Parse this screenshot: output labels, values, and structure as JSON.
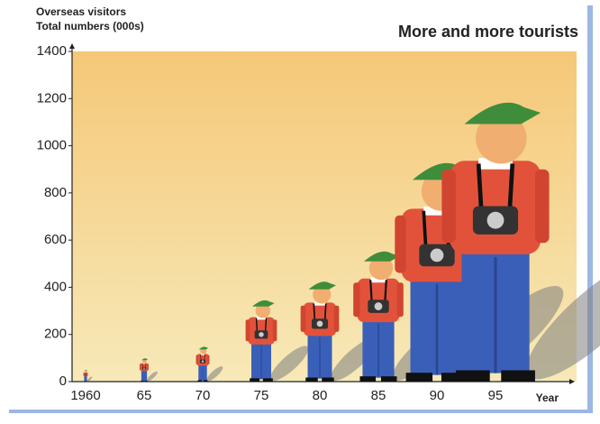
{
  "chart_data": {
    "type": "pictogram",
    "title": "More and more tourists",
    "y_label": [
      "Overseas visitors",
      "Total numbers (000s)"
    ],
    "x_label": "Year",
    "categories": [
      "1960",
      "65",
      "70",
      "75",
      "80",
      "85",
      "90",
      "95"
    ],
    "values": [
      50,
      100,
      150,
      350,
      430,
      560,
      940,
      1200
    ],
    "ylim": [
      0,
      1400
    ],
    "yticks": [
      0,
      200,
      400,
      600,
      800,
      1000,
      1200,
      1400
    ]
  }
}
